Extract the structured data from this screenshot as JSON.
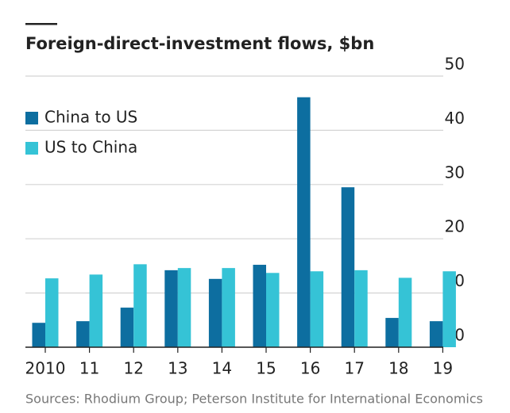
{
  "chart_data": {
    "type": "bar",
    "title": "Foreign-direct-investment flows, $bn",
    "source": "Sources: Rhodium Group; Peterson Institute for International Economics",
    "categories": [
      "2010",
      "11",
      "12",
      "13",
      "14",
      "15",
      "16",
      "17",
      "18",
      "19"
    ],
    "series": [
      {
        "name": "China to US",
        "color": "#0d6ea0",
        "values": [
          4.5,
          4.8,
          7.3,
          14.2,
          12.6,
          15.2,
          46.1,
          29.5,
          5.4,
          4.8
        ]
      },
      {
        "name": "US to China",
        "color": "#35c3d6",
        "values": [
          12.7,
          13.4,
          15.3,
          14.6,
          14.6,
          13.7,
          14.0,
          14.2,
          12.8,
          14.0
        ]
      }
    ],
    "ylim": [
      0,
      50
    ],
    "yticks": [
      0,
      10,
      20,
      30,
      40,
      50
    ],
    "grid": true,
    "legend": "upper left"
  }
}
